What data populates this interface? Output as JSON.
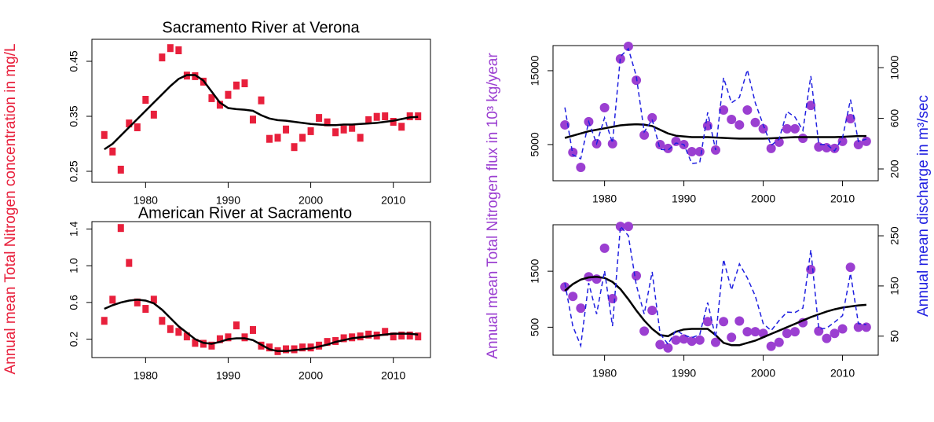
{
  "chart_data": [
    {
      "type": "scatter",
      "title": "Sacramento River at Verona",
      "ylabel": "Annual mean Total Nitrogen concentration in mg/L",
      "x": [
        1975,
        1976,
        1977,
        1978,
        1979,
        1980,
        1981,
        1982,
        1983,
        1984,
        1985,
        1986,
        1987,
        1988,
        1989,
        1990,
        1991,
        1992,
        1993,
        1994,
        1995,
        1996,
        1997,
        1998,
        1999,
        2000,
        2001,
        2002,
        2003,
        2004,
        2005,
        2006,
        2007,
        2008,
        2009,
        2010,
        2011,
        2012,
        2013
      ],
      "xlim": [
        1973.5,
        2014.5
      ],
      "xticks": [
        1980,
        1990,
        2000,
        2010
      ],
      "ylim": [
        0.23,
        0.49
      ],
      "yticks": [
        0.25,
        0.35,
        0.45
      ],
      "series": [
        {
          "color": "#e8203c",
          "marker": "square",
          "values": [
            0.316,
            0.286,
            0.253,
            0.337,
            0.33,
            0.38,
            0.353,
            0.457,
            0.474,
            0.47,
            0.424,
            0.423,
            0.413,
            0.383,
            0.371,
            0.389,
            0.406,
            0.41,
            0.344,
            0.379,
            0.309,
            0.311,
            0.326,
            0.294,
            0.311,
            0.323,
            0.347,
            0.339,
            0.321,
            0.326,
            0.329,
            0.311,
            0.343,
            0.349,
            0.35,
            0.34,
            0.331,
            0.35,
            0.35
          ]
        },
        {
          "color": "#000000",
          "marker": "line",
          "values": [
            0.29,
            0.3,
            0.315,
            0.33,
            0.345,
            0.36,
            0.375,
            0.39,
            0.405,
            0.418,
            0.425,
            0.425,
            0.415,
            0.395,
            0.375,
            0.365,
            0.363,
            0.362,
            0.36,
            0.352,
            0.346,
            0.343,
            0.342,
            0.34,
            0.338,
            0.336,
            0.335,
            0.334,
            0.334,
            0.335,
            0.335,
            0.336,
            0.337,
            0.338,
            0.34,
            0.342,
            0.345,
            0.348,
            0.349
          ]
        }
      ]
    },
    {
      "type": "scatter",
      "title": "American River at Sacramento",
      "x": [
        1975,
        1976,
        1977,
        1978,
        1979,
        1980,
        1981,
        1982,
        1983,
        1984,
        1985,
        1986,
        1987,
        1988,
        1989,
        1990,
        1991,
        1992,
        1993,
        1994,
        1995,
        1996,
        1997,
        1998,
        1999,
        2000,
        2001,
        2002,
        2003,
        2004,
        2005,
        2006,
        2007,
        2008,
        2009,
        2010,
        2011,
        2012,
        2013
      ],
      "xlim": [
        1973.5,
        2014.5
      ],
      "xticks": [
        1980,
        1990,
        2000,
        2010
      ],
      "ylim": [
        0,
        1.48
      ],
      "yticks": [
        0.2,
        0.6,
        {
          "value": 1,
          "label": "1.0"
        },
        1.4
      ],
      "series": [
        {
          "color": "#e8203c",
          "marker": "square",
          "values": [
            0.4,
            0.63,
            1.41,
            1.03,
            0.6,
            0.53,
            0.63,
            0.4,
            0.31,
            0.28,
            0.23,
            0.16,
            0.15,
            0.13,
            0.2,
            0.22,
            0.35,
            0.22,
            0.3,
            0.13,
            0.11,
            0.07,
            0.09,
            0.09,
            0.11,
            0.11,
            0.13,
            0.17,
            0.18,
            0.21,
            0.22,
            0.23,
            0.25,
            0.24,
            0.28,
            0.23,
            0.24,
            0.24,
            0.23
          ]
        },
        {
          "color": "#000000",
          "marker": "line",
          "values": [
            0.53,
            0.57,
            0.6,
            0.62,
            0.63,
            0.62,
            0.59,
            0.52,
            0.43,
            0.34,
            0.27,
            0.2,
            0.16,
            0.15,
            0.17,
            0.2,
            0.21,
            0.21,
            0.19,
            0.14,
            0.09,
            0.07,
            0.07,
            0.08,
            0.09,
            0.1,
            0.12,
            0.14,
            0.17,
            0.19,
            0.21,
            0.22,
            0.23,
            0.24,
            0.25,
            0.26,
            0.26,
            0.26,
            0.25
          ]
        }
      ]
    },
    {
      "type": "scatter",
      "ylabel": "Annual mean Total Nitrogen flux in 10³ kg/year",
      "y2label": "Annual mean discharge in m³/sec",
      "x": [
        1975,
        1976,
        1977,
        1978,
        1979,
        1980,
        1981,
        1982,
        1983,
        1984,
        1985,
        1986,
        1987,
        1988,
        1989,
        1990,
        1991,
        1992,
        1993,
        1994,
        1995,
        1996,
        1997,
        1998,
        1999,
        2000,
        2001,
        2002,
        2003,
        2004,
        2005,
        2006,
        2007,
        2008,
        2009,
        2010,
        2011,
        2012,
        2013
      ],
      "xlim": [
        1973.5,
        2014.5
      ],
      "xticks": [
        1980,
        1990,
        2000,
        2010
      ],
      "ylim": [
        100,
        18400
      ],
      "yticks": [
        5000,
        15000
      ],
      "y2lim": [
        107,
        1174
      ],
      "y2ticks": [
        200,
        600,
        1000
      ],
      "series": [
        {
          "color": "#9b3fd1",
          "marker": "circle",
          "values": [
            7660,
            3940,
            1910,
            8090,
            5110,
            10000,
            5110,
            16600,
            18300,
            13700,
            6280,
            8620,
            5000,
            4470,
            5430,
            5000,
            4040,
            4040,
            7550,
            4260,
            9680,
            8400,
            7660,
            9680,
            7980,
            7130,
            4470,
            5320,
            7130,
            7130,
            5850,
            10300,
            4680,
            4570,
            4470,
            5430,
            8510,
            5000,
            5430
          ]
        },
        {
          "color": "#000000",
          "marker": "line",
          "values": [
            5900,
            6200,
            6500,
            6800,
            7000,
            7200,
            7400,
            7600,
            7700,
            7750,
            7700,
            7500,
            7000,
            6500,
            6200,
            6100,
            6000,
            6000,
            6000,
            5950,
            5900,
            5850,
            5800,
            5800,
            5800,
            5800,
            5850,
            5900,
            5950,
            6000,
            6000,
            6000,
            6000,
            6000,
            6000,
            6050,
            6100,
            6150,
            6150
          ]
        },
        {
          "color": "#1f1fe0",
          "marker": "dashed",
          "axis": "y2",
          "values": [
            685,
            312,
            281,
            573,
            400,
            604,
            405,
            1088,
            1150,
            933,
            492,
            591,
            355,
            349,
            405,
            393,
            243,
            250,
            647,
            349,
            920,
            722,
            765,
            983,
            722,
            548,
            386,
            436,
            653,
            610,
            504,
            933,
            393,
            393,
            343,
            448,
            747,
            417,
            436
          ]
        }
      ]
    },
    {
      "type": "scatter",
      "x": [
        1975,
        1976,
        1977,
        1978,
        1979,
        1980,
        1981,
        1982,
        1983,
        1984,
        1985,
        1986,
        1987,
        1988,
        1989,
        1990,
        1991,
        1992,
        1993,
        1994,
        1995,
        1996,
        1997,
        1998,
        1999,
        2000,
        2001,
        2002,
        2003,
        2004,
        2005,
        2006,
        2007,
        2008,
        2009,
        2010,
        2011,
        2012,
        2013
      ],
      "xlim": [
        1973.5,
        2014.5
      ],
      "xticks": [
        1980,
        1990,
        2000,
        2010
      ],
      "ylim": [
        0,
        2330
      ],
      "yticks": [
        500,
        1500
      ],
      "y2lim": [
        12,
        272
      ],
      "y2ticks": [
        50,
        150,
        250
      ],
      "series": [
        {
          "color": "#9b3fd1",
          "marker": "circle",
          "values": [
            1220,
            1050,
            840,
            1400,
            1360,
            1910,
            1010,
            2300,
            2300,
            1420,
            430,
            800,
            190,
            130,
            270,
            290,
            250,
            270,
            600,
            230,
            600,
            320,
            610,
            420,
            420,
            390,
            160,
            230,
            390,
            420,
            580,
            1530,
            430,
            300,
            390,
            470,
            1570,
            500,
            500
          ]
        },
        {
          "color": "#000000",
          "marker": "line",
          "values": [
            1150,
            1270,
            1350,
            1390,
            1400,
            1380,
            1310,
            1180,
            1000,
            800,
            620,
            470,
            360,
            340,
            420,
            460,
            470,
            470,
            470,
            360,
            220,
            180,
            180,
            220,
            260,
            320,
            380,
            440,
            500,
            560,
            620,
            680,
            730,
            780,
            820,
            850,
            870,
            890,
            900
          ]
        },
        {
          "color": "#1f1fe0",
          "marker": "dashed",
          "axis": "y2",
          "values": [
            156,
            70,
            31,
            156,
            94,
            180,
            70,
            269,
            250,
            152,
            94,
            178,
            55,
            34,
            62,
            52,
            47,
            53,
            117,
            47,
            203,
            142,
            194,
            166,
            130,
            75,
            61,
            81,
            98,
            97,
            106,
            222,
            64,
            66,
            78,
            91,
            175,
            75,
            73
          ]
        }
      ]
    }
  ]
}
